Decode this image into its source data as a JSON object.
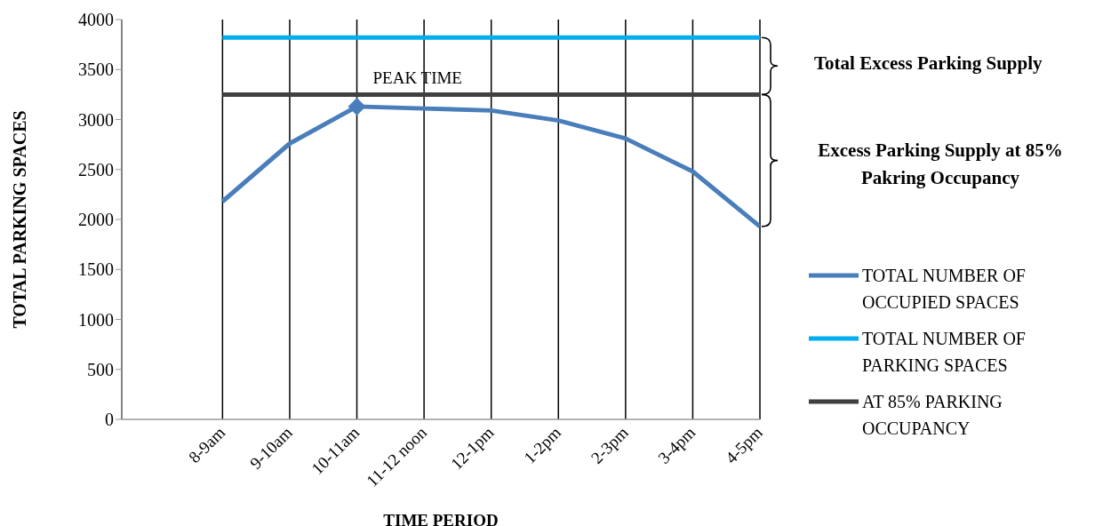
{
  "chart_data": {
    "type": "line",
    "xlabel": "TIME PERIOD",
    "ylabel": "TOTAL PARKING SPACES",
    "categories": [
      "8-9am",
      "9-10am",
      "10-11am",
      "11-12 noon",
      "12-1pm",
      "1-2pm",
      "2-3pm",
      "3-4pm",
      "4-5pm"
    ],
    "series": [
      {
        "name": "TOTAL NUMBER OF OCCUPIED SPACES",
        "color": "#4a7ebb",
        "values": [
          2180,
          2760,
          3130,
          3110,
          3090,
          2990,
          2810,
          2480,
          1930
        ]
      },
      {
        "name": "TOTAL NUMBER OF PARKING SPACES",
        "color": "#00aeef",
        "values": [
          3820,
          3820,
          3820,
          3820,
          3820,
          3820,
          3820,
          3820,
          3820
        ]
      },
      {
        "name": "AT 85% PARKING OCCUPANCY",
        "color": "#404040",
        "values": [
          3250,
          3250,
          3250,
          3250,
          3250,
          3250,
          3250,
          3250,
          3250
        ]
      }
    ],
    "ylim": [
      0,
      4000
    ],
    "yticks": [
      0,
      500,
      1000,
      1500,
      2000,
      2500,
      3000,
      3500,
      4000
    ],
    "grid": "x",
    "legend": "right",
    "marker": "none",
    "line_style": "solid",
    "annotations": [
      {
        "text": "PEAK TIME",
        "x": "10-11am",
        "y": 3130
      },
      "Total Excess Parking Supply",
      "Excess Parking Supply at 85% Pakring Occupancy"
    ]
  }
}
